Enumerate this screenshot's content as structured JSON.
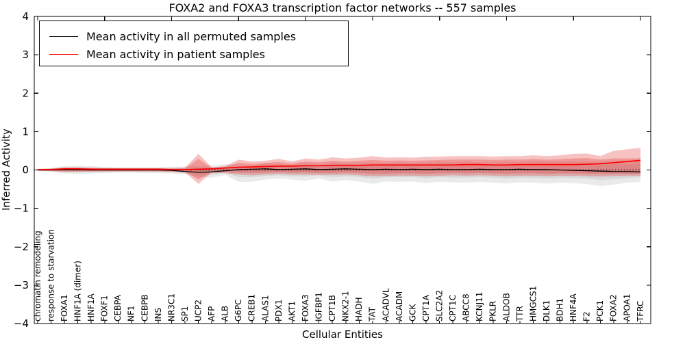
{
  "chart_data": {
    "type": "line",
    "title": "FOXA2 and FOXA3 transcription factor networks -- 557 samples",
    "xlabel": "Cellular Entities",
    "ylabel": "Inferred Activity",
    "ylim": [
      -4,
      4
    ],
    "y_ticks": [
      -4,
      -3,
      -2,
      -1,
      0,
      1,
      2,
      3,
      4
    ],
    "x_major_tick_every": 5,
    "grid": false,
    "legend_position": "upper left",
    "zero_line": {
      "style": "dotted",
      "color": "#000000",
      "y": 0
    },
    "categories": [
      "chromatin remodeling",
      "response to starvation",
      "FOXA1",
      "HNF1A (dimer)",
      "HNF1A",
      "FOXF1",
      "CEBPA",
      "NF1",
      "CEBPB",
      "INS",
      "NR3C1",
      "SP1",
      "UCP2",
      "AFP",
      "ALB",
      "G6PC",
      "CREB1",
      "ALAS1",
      "PDX1",
      "AKT1",
      "FOXA3",
      "IGFBP1",
      "CPT1B",
      "NKX2-1",
      "HADH",
      "TAT",
      "ACADVL",
      "ACADM",
      "GCK",
      "CPT1A",
      "SLC2A2",
      "CPT1C",
      "ABCC8",
      "KCNJ11",
      "PKLR",
      "ALDOB",
      "TTR",
      "HMGCS1",
      "DLK1",
      "BDH1",
      "HNF4A",
      "F2",
      "PCK1",
      "FOXA2",
      "APOA1",
      "TFRC"
    ],
    "series": [
      {
        "name": "Mean activity in all permuted samples",
        "color": "#000000",
        "line_width": 1.3,
        "band_color": "#808080",
        "band_opacity": 0.17,
        "values": [
          0,
          0,
          0.01,
          0.01,
          0,
          0,
          0,
          0,
          0,
          0,
          -0.01,
          -0.04,
          -0.06,
          -0.05,
          -0.02,
          0.01,
          0.02,
          0.03,
          0.01,
          0.02,
          0.03,
          0.01,
          0.02,
          0.03,
          0.02,
          0.01,
          0.02,
          0.01,
          0.02,
          0.01,
          0.02,
          0.01,
          0.01,
          0.02,
          0.01,
          0.01,
          0.02,
          0.01,
          0.01,
          0,
          -0.01,
          -0.02,
          -0.03,
          -0.04,
          -0.04,
          -0.05
        ],
        "band_outer": {
          "hi": [
            0.03,
            0.05,
            0.1,
            0.11,
            0.1,
            0.08,
            0.07,
            0.07,
            0.07,
            0.07,
            0.08,
            0.09,
            0.1,
            0.12,
            0.15,
            0.13,
            0.1,
            0.18,
            0.15,
            0.13,
            0.18,
            0.14,
            0.2,
            0.18,
            0.18,
            0.2,
            0.18,
            0.2,
            0.18,
            0.2,
            0.22,
            0.2,
            0.22,
            0.2,
            0.2,
            0.22,
            0.2,
            0.24,
            0.22,
            0.22,
            0.24,
            0.22,
            0.22,
            0.25,
            0.24,
            0.26
          ],
          "lo": [
            -0.03,
            -0.05,
            -0.09,
            -0.1,
            -0.09,
            -0.08,
            -0.07,
            -0.07,
            -0.08,
            -0.08,
            -0.09,
            -0.12,
            -0.18,
            -0.2,
            -0.13,
            -0.31,
            -0.31,
            -0.25,
            -0.22,
            -0.25,
            -0.28,
            -0.22,
            -0.3,
            -0.26,
            -0.3,
            -0.36,
            -0.3,
            -0.31,
            -0.3,
            -0.34,
            -0.31,
            -0.32,
            -0.33,
            -0.31,
            -0.33,
            -0.35,
            -0.32,
            -0.33,
            -0.35,
            -0.33,
            -0.34,
            -0.37,
            -0.42,
            -0.38,
            -0.33,
            -0.31
          ]
        },
        "band_inner": {
          "hi": [
            0.02,
            0.03,
            0.06,
            0.07,
            0.06,
            0.05,
            0.04,
            0.04,
            0.04,
            0.04,
            0.05,
            0.05,
            0.05,
            0.07,
            0.09,
            0.08,
            0.07,
            0.12,
            0.1,
            0.09,
            0.12,
            0.09,
            0.13,
            0.12,
            0.12,
            0.13,
            0.12,
            0.13,
            0.12,
            0.13,
            0.14,
            0.13,
            0.14,
            0.13,
            0.13,
            0.14,
            0.13,
            0.15,
            0.14,
            0.14,
            0.15,
            0.13,
            0.13,
            0.15,
            0.14,
            0.15
          ],
          "lo": [
            -0.02,
            -0.03,
            -0.06,
            -0.06,
            -0.06,
            -0.05,
            -0.04,
            -0.04,
            -0.05,
            -0.05,
            -0.06,
            -0.08,
            -0.12,
            -0.13,
            -0.08,
            -0.19,
            -0.19,
            -0.16,
            -0.14,
            -0.16,
            -0.17,
            -0.14,
            -0.19,
            -0.16,
            -0.19,
            -0.22,
            -0.19,
            -0.19,
            -0.19,
            -0.21,
            -0.19,
            -0.2,
            -0.2,
            -0.19,
            -0.2,
            -0.22,
            -0.2,
            -0.21,
            -0.22,
            -0.21,
            -0.21,
            -0.23,
            -0.26,
            -0.24,
            -0.21,
            -0.19
          ]
        }
      },
      {
        "name": "Mean activity in patient samples",
        "color": "#ff0000",
        "line_width": 1.7,
        "band_color": "#e23b3b",
        "band_opacity": 0.31,
        "values": [
          0.01,
          0.01,
          0.03,
          0.03,
          0.02,
          0.02,
          0.02,
          0.02,
          0.02,
          0.02,
          0.01,
          0.01,
          0.02,
          0.03,
          0.05,
          0.07,
          0.08,
          0.09,
          0.1,
          0.1,
          0.11,
          0.11,
          0.12,
          0.12,
          0.12,
          0.13,
          0.13,
          0.13,
          0.13,
          0.13,
          0.13,
          0.13,
          0.14,
          0.14,
          0.13,
          0.13,
          0.14,
          0.14,
          0.14,
          0.14,
          0.14,
          0.15,
          0.16,
          0.19,
          0.22,
          0.25
        ],
        "band_outer": {
          "hi": [
            0.02,
            0.04,
            0.07,
            0.07,
            0.06,
            0.05,
            0.05,
            0.05,
            0.05,
            0.05,
            0.05,
            0.06,
            0.42,
            0.07,
            0.1,
            0.27,
            0.22,
            0.24,
            0.29,
            0.22,
            0.3,
            0.27,
            0.33,
            0.3,
            0.32,
            0.36,
            0.32,
            0.33,
            0.32,
            0.34,
            0.35,
            0.36,
            0.36,
            0.36,
            0.35,
            0.36,
            0.36,
            0.38,
            0.36,
            0.38,
            0.42,
            0.43,
            0.36,
            0.5,
            0.54,
            0.58
          ],
          "lo": [
            -0.02,
            -0.03,
            -0.05,
            -0.05,
            -0.04,
            -0.04,
            -0.04,
            -0.04,
            -0.04,
            -0.04,
            -0.05,
            -0.06,
            -0.36,
            -0.07,
            -0.08,
            -0.12,
            -0.14,
            -0.12,
            -0.1,
            -0.12,
            -0.12,
            -0.13,
            -0.13,
            -0.12,
            -0.14,
            -0.16,
            -0.16,
            -0.15,
            -0.15,
            -0.16,
            -0.15,
            -0.14,
            -0.15,
            -0.14,
            -0.15,
            -0.16,
            -0.15,
            -0.15,
            -0.16,
            -0.15,
            -0.15,
            -0.16,
            -0.17,
            -0.16,
            -0.15,
            -0.15
          ]
        },
        "band_inner": {
          "hi": [
            0.02,
            0.03,
            0.05,
            0.05,
            0.04,
            0.04,
            0.04,
            0.04,
            0.04,
            0.04,
            0.03,
            0.04,
            0.29,
            0.05,
            0.08,
            0.19,
            0.16,
            0.18,
            0.21,
            0.17,
            0.22,
            0.2,
            0.24,
            0.22,
            0.24,
            0.26,
            0.24,
            0.25,
            0.24,
            0.25,
            0.26,
            0.27,
            0.27,
            0.27,
            0.26,
            0.27,
            0.27,
            0.28,
            0.27,
            0.28,
            0.3,
            0.31,
            0.27,
            0.3,
            0.3,
            0.31
          ],
          "lo": [
            -0.01,
            -0.02,
            -0.03,
            -0.03,
            -0.03,
            -0.03,
            -0.03,
            -0.03,
            -0.03,
            -0.03,
            -0.03,
            -0.04,
            -0.25,
            -0.05,
            -0.05,
            -0.07,
            -0.08,
            -0.07,
            -0.06,
            -0.07,
            -0.07,
            -0.08,
            -0.08,
            -0.07,
            -0.08,
            -0.1,
            -0.1,
            -0.09,
            -0.09,
            -0.1,
            -0.09,
            -0.08,
            -0.09,
            -0.08,
            -0.09,
            -0.1,
            -0.09,
            -0.09,
            -0.1,
            -0.09,
            -0.09,
            -0.1,
            -0.1,
            -0.1,
            -0.1,
            -0.1
          ]
        }
      }
    ]
  }
}
